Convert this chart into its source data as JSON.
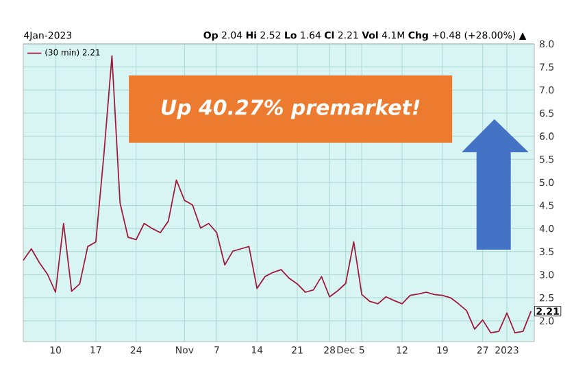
{
  "chart_data": {
    "type": "line",
    "annotations": [
      "4Jan-2023",
      "**Op** 2.04 **Hi** 2.52 **Lo** 1.64 **Cl** 2.21 **Vol** 4.1M **Chg** +0.48 (+28.00%) ▲",
      "Up 40.27% premarket!",
      {
        "text": "2.21",
        "y": 2.21
      }
    ],
    "categories": [
      null,
      null,
      null,
      null,
      "10",
      null,
      null,
      null,
      null,
      "17",
      null,
      null,
      null,
      null,
      "24",
      null,
      null,
      null,
      null,
      null,
      "Nov",
      null,
      null,
      null,
      "7",
      null,
      null,
      null,
      null,
      "14",
      null,
      null,
      null,
      null,
      "21",
      null,
      null,
      null,
      "28",
      null,
      "Dec",
      null,
      "5",
      null,
      null,
      null,
      null,
      "12",
      null,
      null,
      null,
      null,
      "19",
      null,
      null,
      null,
      null,
      "27",
      null,
      null,
      "2023",
      null,
      null,
      null
    ],
    "series": [
      {
        "name": "(30 min) 2.21",
        "color": "#9e1b3c",
        "values": [
          3.31,
          3.56,
          3.26,
          3.01,
          2.62,
          4.11,
          2.64,
          2.8,
          3.61,
          3.71,
          5.6,
          7.74,
          4.56,
          3.81,
          3.76,
          4.11,
          4.0,
          3.91,
          4.16,
          5.05,
          4.61,
          4.51,
          4.01,
          4.11,
          3.91,
          3.21,
          3.51,
          3.56,
          3.61,
          2.7,
          2.96,
          3.05,
          3.11,
          2.92,
          2.8,
          2.62,
          2.67,
          2.96,
          2.52,
          2.65,
          2.81,
          3.71,
          2.57,
          2.42,
          2.37,
          2.52,
          2.44,
          2.37,
          2.55,
          2.58,
          2.62,
          2.57,
          2.55,
          2.5,
          2.37,
          2.22,
          1.82,
          2.02,
          1.74,
          1.77,
          2.17,
          1.74,
          1.77,
          2.21
        ]
      }
    ],
    "ylim": [
      1.55,
      8.0
    ],
    "yticks": [
      {
        "value": 2,
        "label": "2.0"
      },
      2.5,
      {
        "value": 3,
        "label": "3.0"
      },
      3.5,
      {
        "value": 4,
        "label": "4.0"
      },
      4.5,
      {
        "value": 5,
        "label": "5.0"
      },
      5.5,
      {
        "value": 6,
        "label": "6.0"
      },
      6.5,
      {
        "value": 7,
        "label": "7.0"
      },
      7.5,
      {
        "value": 8,
        "label": "8.0"
      }
    ],
    "grid": true,
    "legend": "top left",
    "marker": "none",
    "line_style": "solid"
  }
}
